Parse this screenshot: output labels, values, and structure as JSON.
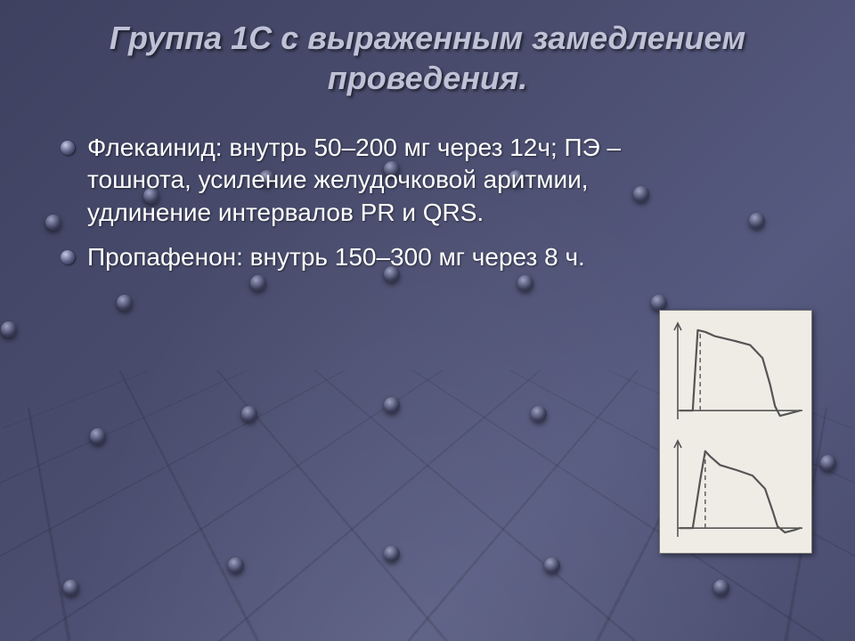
{
  "title": "Группа 1С с выраженным замедлением проведения.",
  "bullets": [
    "Флекаинид: внутрь 50–200 мг через 12ч; ПЭ – тошнота, усиление желудочковой аритмии, удлинение интервалов PR и QRS.",
    "Пропафенон: внутрь 150–300 мг через 8 ч."
  ],
  "colors": {
    "background_base": "#4a4d6e",
    "title_color": "#bfc1d6",
    "body_text_color": "#ffffff",
    "figure_bg": "#efece6",
    "axis_color": "#555555",
    "curve_color": "#555555",
    "dashed_color": "#666666"
  },
  "figure": {
    "panels": [
      {
        "type": "line",
        "xlim": [
          0,
          100
        ],
        "ylim": [
          -10,
          100
        ],
        "baseline_y": 0,
        "curve": [
          [
            2,
            0
          ],
          [
            12,
            0
          ],
          [
            16,
            92
          ],
          [
            22,
            90
          ],
          [
            30,
            85
          ],
          [
            45,
            80
          ],
          [
            58,
            75
          ],
          [
            68,
            60
          ],
          [
            74,
            30
          ],
          [
            78,
            5
          ],
          [
            82,
            -6
          ],
          [
            90,
            -3
          ],
          [
            98,
            0
          ]
        ],
        "dashed_x": 18,
        "dashed_y_range": [
          0,
          90
        ],
        "line_width": 2.2,
        "axis_width": 1.6
      },
      {
        "type": "line",
        "xlim": [
          0,
          100
        ],
        "ylim": [
          -10,
          100
        ],
        "baseline_y": 0,
        "curve": [
          [
            2,
            0
          ],
          [
            12,
            0
          ],
          [
            18,
            55
          ],
          [
            22,
            88
          ],
          [
            26,
            82
          ],
          [
            34,
            72
          ],
          [
            48,
            66
          ],
          [
            60,
            60
          ],
          [
            70,
            45
          ],
          [
            76,
            20
          ],
          [
            80,
            2
          ],
          [
            86,
            -5
          ],
          [
            94,
            -2
          ],
          [
            98,
            0
          ]
        ],
        "dashed_x": 22,
        "dashed_y_range": [
          0,
          84
        ],
        "line_width": 2.2,
        "axis_width": 1.6
      }
    ]
  },
  "background_nodes": [
    [
      60,
      250
    ],
    [
      170,
      220
    ],
    [
      300,
      200
    ],
    [
      440,
      190
    ],
    [
      580,
      200
    ],
    [
      720,
      218
    ],
    [
      850,
      248
    ],
    [
      10,
      370
    ],
    [
      140,
      340
    ],
    [
      290,
      318
    ],
    [
      440,
      308
    ],
    [
      590,
      318
    ],
    [
      740,
      340
    ],
    [
      890,
      370
    ],
    [
      -40,
      520
    ],
    [
      110,
      490
    ],
    [
      280,
      465
    ],
    [
      440,
      455
    ],
    [
      605,
      465
    ],
    [
      770,
      490
    ],
    [
      930,
      520
    ],
    [
      -90,
      700
    ],
    [
      80,
      660
    ],
    [
      265,
      635
    ],
    [
      440,
      622
    ],
    [
      620,
      635
    ],
    [
      810,
      660
    ],
    [
      985,
      700
    ]
  ]
}
